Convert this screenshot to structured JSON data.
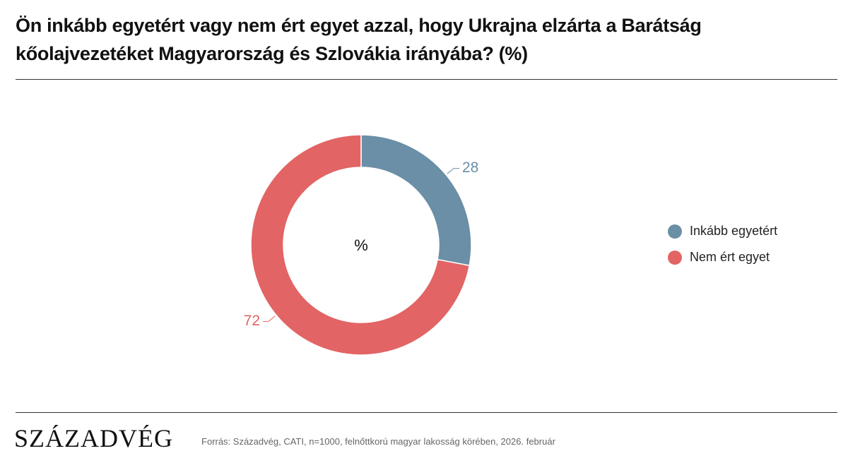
{
  "chart_data": {
    "type": "pie",
    "hole": true,
    "title": "Ön inkább egyetért vagy nem ért egyet azzal, hogy Ukrajna elzárta a Barátság kőolajvezetéket Magyarország és Szlovákia irányába? (%)",
    "center_label": "%",
    "categories": [
      "Inkább egyetért",
      "Nem ért egyet"
    ],
    "values": [
      28,
      72
    ],
    "colors": [
      "#6a8fa6",
      "#e26464"
    ],
    "legend": "right"
  },
  "footer": {
    "logo": "SZÁZADVÉG",
    "source": "Forrás: Századvég, CATI, n=1000, felnőttkorú magyar lakosság körében, 2026. február"
  }
}
